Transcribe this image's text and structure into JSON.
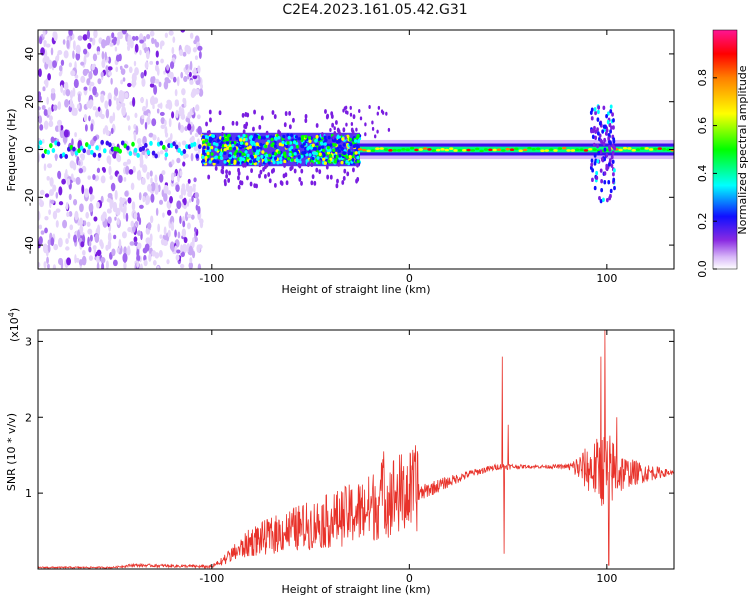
{
  "title": "C2E4.2023.161.05.42.G31",
  "chart_data": [
    {
      "type": "heatmap",
      "name": "spectrogram",
      "xlabel": "Height of straight line (km)",
      "ylabel": "Frequency (Hz)",
      "xlim": [
        -188,
        134
      ],
      "ylim": [
        -50,
        50
      ],
      "xticks": [
        -100,
        0,
        100
      ],
      "xtick_labels": [
        "-100",
        "0",
        "100"
      ],
      "yticks": [
        -40,
        -20,
        0,
        20,
        40
      ],
      "ytick_labels": [
        "-40",
        "-20",
        "0",
        "20",
        "40"
      ],
      "colorbar": {
        "label": "Normalized spectral amplitude",
        "range": [
          0,
          1
        ],
        "ticks": [
          0.0,
          0.2,
          0.4,
          0.6,
          0.8
        ],
        "tick_labels": [
          "0.0",
          "0.2",
          "0.4",
          "0.6",
          "0.8"
        ],
        "colors": [
          "#ffffff",
          "#8a2be2",
          "#0000ff",
          "#00ffff",
          "#00ff00",
          "#ffff00",
          "#ff8000",
          "#ff0000",
          "#ff1493"
        ]
      },
      "features": [
        {
          "x_range": [
            -188,
            -105
          ],
          "description_level": "scattered broadband speckle",
          "freq_range": [
            -50,
            50
          ]
        },
        {
          "x_range": [
            -105,
            -25
          ],
          "freq_center": 0,
          "bandwidth": 10
        },
        {
          "x_range": [
            -25,
            134
          ],
          "freq_center": 0,
          "bandwidth": 4
        },
        {
          "x_range": [
            92,
            104
          ],
          "freq_center": 0,
          "bandwidth": 40
        }
      ]
    },
    {
      "type": "line",
      "name": "snr",
      "xlabel": "Height of straight line (km)",
      "ylabel": "SNR (10 * v/v)",
      "yscale_label": "(x10",
      "yscale_exp": "4",
      "yscale_close": ")",
      "xlim": [
        -188,
        134
      ],
      "ylim": [
        0,
        3.15
      ],
      "xticks": [
        -100,
        0,
        100
      ],
      "xtick_labels": [
        "-100",
        "0",
        "100"
      ],
      "yticks": [
        1,
        2,
        3
      ],
      "ytick_labels": [
        "1",
        "2",
        "3"
      ],
      "color": "#e8322a",
      "envelope": {
        "x": [
          -188,
          -150,
          -140,
          -100,
          -88,
          -80,
          -60,
          -40,
          -20,
          -13,
          0,
          10,
          30,
          45,
          50,
          60,
          80,
          90,
          100,
          110,
          134
        ],
        "y": [
          0.02,
          0.02,
          0.05,
          0.03,
          0.2,
          0.32,
          0.45,
          0.55,
          0.68,
          0.8,
          0.9,
          1.05,
          1.25,
          1.35,
          1.35,
          1.35,
          1.35,
          1.32,
          1.3,
          1.27,
          1.27
        ],
        "noise": [
          0.01,
          0.01,
          0.02,
          0.02,
          0.1,
          0.14,
          0.18,
          0.2,
          0.22,
          0.25,
          0.12,
          0.1,
          0.05,
          0.04,
          0.04,
          0.02,
          0.03,
          0.3,
          0.55,
          0.2,
          0.02
        ]
      },
      "spikes": [
        {
          "x": -13,
          "y": 1.55
        },
        {
          "x": 47,
          "y": 2.8
        },
        {
          "x": 48,
          "y": 0.2
        },
        {
          "x": 50,
          "y": 1.9
        },
        {
          "x": 97,
          "y": 2.8
        },
        {
          "x": 99,
          "y": 3.15
        },
        {
          "x": 101,
          "y": 0.05
        },
        {
          "x": 105,
          "y": 2.0
        }
      ]
    }
  ]
}
